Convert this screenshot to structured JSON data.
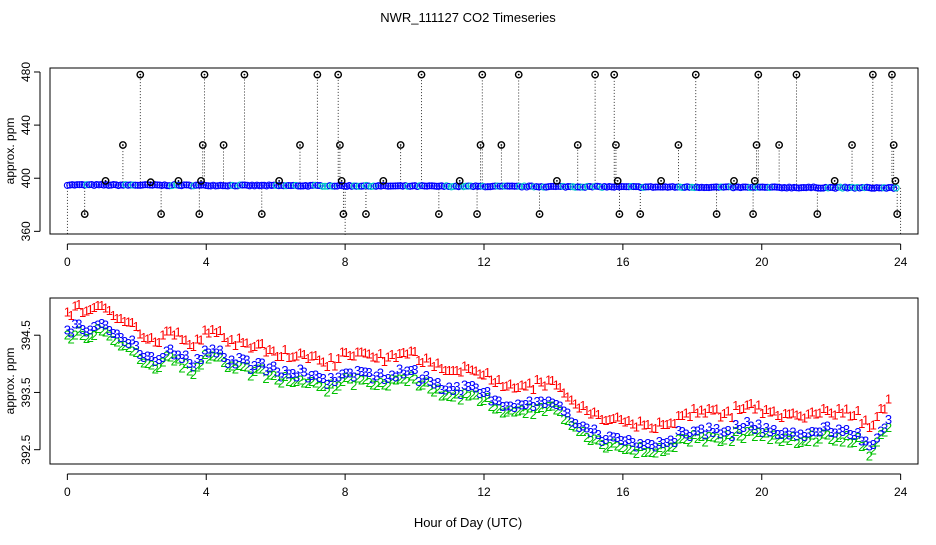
{
  "title": "NWR_111127  CO2 Timeseries",
  "xlabel": "Hour of Day (UTC)",
  "colors": {
    "flag": "#000000",
    "series1": "#ff0000",
    "series2": "#00c000",
    "series3": "#0000ff",
    "cyan": "#00c8c8",
    "axis": "#000000"
  },
  "chart_data": [
    {
      "type": "scatter",
      "name": "top-panel",
      "ylabel": "approx. ppm",
      "xlim": [
        -0.5,
        24.5
      ],
      "ylim": [
        358,
        483
      ],
      "xticks": [
        0,
        4,
        8,
        12,
        16,
        20,
        24
      ],
      "yticks": [
        360,
        400,
        440,
        480
      ],
      "baseline": {
        "x_start": 0,
        "x_end": 23.9,
        "y_start": 395.0,
        "y_end": 392.7
      },
      "flagged_points": [
        {
          "x": 0.5,
          "y": 373
        },
        {
          "x": 1.1,
          "y": 398
        },
        {
          "x": 1.6,
          "y": 425
        },
        {
          "x": 2.1,
          "y": 478
        },
        {
          "x": 2.4,
          "y": 397
        },
        {
          "x": 2.7,
          "y": 373
        },
        {
          "x": 3.2,
          "y": 398
        },
        {
          "x": 3.8,
          "y": 373
        },
        {
          "x": 3.85,
          "y": 398
        },
        {
          "x": 3.9,
          "y": 425
        },
        {
          "x": 3.95,
          "y": 478
        },
        {
          "x": 4.5,
          "y": 425
        },
        {
          "x": 5.1,
          "y": 478
        },
        {
          "x": 5.6,
          "y": 373
        },
        {
          "x": 6.1,
          "y": 398
        },
        {
          "x": 6.7,
          "y": 425
        },
        {
          "x": 7.2,
          "y": 478
        },
        {
          "x": 7.8,
          "y": 478
        },
        {
          "x": 7.85,
          "y": 425
        },
        {
          "x": 7.9,
          "y": 398
        },
        {
          "x": 7.95,
          "y": 373
        },
        {
          "x": 8.6,
          "y": 373
        },
        {
          "x": 9.1,
          "y": 398
        },
        {
          "x": 9.6,
          "y": 425
        },
        {
          "x": 10.2,
          "y": 478
        },
        {
          "x": 10.7,
          "y": 373
        },
        {
          "x": 11.3,
          "y": 398
        },
        {
          "x": 11.8,
          "y": 373
        },
        {
          "x": 11.9,
          "y": 425
        },
        {
          "x": 11.95,
          "y": 478
        },
        {
          "x": 12.5,
          "y": 425
        },
        {
          "x": 13.0,
          "y": 478
        },
        {
          "x": 13.6,
          "y": 373
        },
        {
          "x": 14.1,
          "y": 398
        },
        {
          "x": 14.7,
          "y": 425
        },
        {
          "x": 15.2,
          "y": 478
        },
        {
          "x": 15.75,
          "y": 478
        },
        {
          "x": 15.8,
          "y": 425
        },
        {
          "x": 15.85,
          "y": 398
        },
        {
          "x": 15.9,
          "y": 373
        },
        {
          "x": 16.5,
          "y": 373
        },
        {
          "x": 17.1,
          "y": 398
        },
        {
          "x": 17.6,
          "y": 425
        },
        {
          "x": 18.1,
          "y": 478
        },
        {
          "x": 18.7,
          "y": 373
        },
        {
          "x": 19.2,
          "y": 398
        },
        {
          "x": 19.75,
          "y": 373
        },
        {
          "x": 19.8,
          "y": 398
        },
        {
          "x": 19.85,
          "y": 425
        },
        {
          "x": 19.9,
          "y": 478
        },
        {
          "x": 20.5,
          "y": 425
        },
        {
          "x": 21.0,
          "y": 478
        },
        {
          "x": 21.6,
          "y": 373
        },
        {
          "x": 22.1,
          "y": 398
        },
        {
          "x": 22.6,
          "y": 425
        },
        {
          "x": 23.2,
          "y": 478
        },
        {
          "x": 23.75,
          "y": 478
        },
        {
          "x": 23.8,
          "y": 425
        },
        {
          "x": 23.85,
          "y": 398
        },
        {
          "x": 23.9,
          "y": 373
        }
      ]
    },
    {
      "type": "scatter",
      "name": "bottom-panel",
      "ylabel": "approx. ppm",
      "xlim": [
        -0.5,
        24.5
      ],
      "ylim": [
        392.25,
        395.15
      ],
      "xticks": [
        0,
        4,
        8,
        12,
        16,
        20,
        24
      ],
      "yticks": [
        392.5,
        393.5,
        394.5
      ],
      "markers": [
        "1",
        "2",
        "3"
      ],
      "offsets": {
        "s1": 0.33,
        "s2": -0.12,
        "s3": 0
      },
      "key_points": [
        [
          0.0,
          394.6
        ],
        [
          1.0,
          394.7
        ],
        [
          1.4,
          394.5
        ],
        [
          2.5,
          394.1
        ],
        [
          3.0,
          394.25
        ],
        [
          3.7,
          394.0
        ],
        [
          4.0,
          394.25
        ],
        [
          5.0,
          394.05
        ],
        [
          6.0,
          393.9
        ],
        [
          7.0,
          393.8
        ],
        [
          7.6,
          393.7
        ],
        [
          8.1,
          393.85
        ],
        [
          9.0,
          393.8
        ],
        [
          9.9,
          393.9
        ],
        [
          10.5,
          393.65
        ],
        [
          12.0,
          393.5
        ],
        [
          12.5,
          393.3
        ],
        [
          13.5,
          393.3
        ],
        [
          14.0,
          393.35
        ],
        [
          14.5,
          393.0
        ],
        [
          15.5,
          392.7
        ],
        [
          16.0,
          392.65
        ],
        [
          17.0,
          392.6
        ],
        [
          18.0,
          392.85
        ],
        [
          19.0,
          392.8
        ],
        [
          19.7,
          392.95
        ],
        [
          20.3,
          392.85
        ],
        [
          21.0,
          392.8
        ],
        [
          22.0,
          392.85
        ],
        [
          22.8,
          392.8
        ],
        [
          23.1,
          392.55
        ],
        [
          23.7,
          393.0
        ]
      ]
    }
  ]
}
